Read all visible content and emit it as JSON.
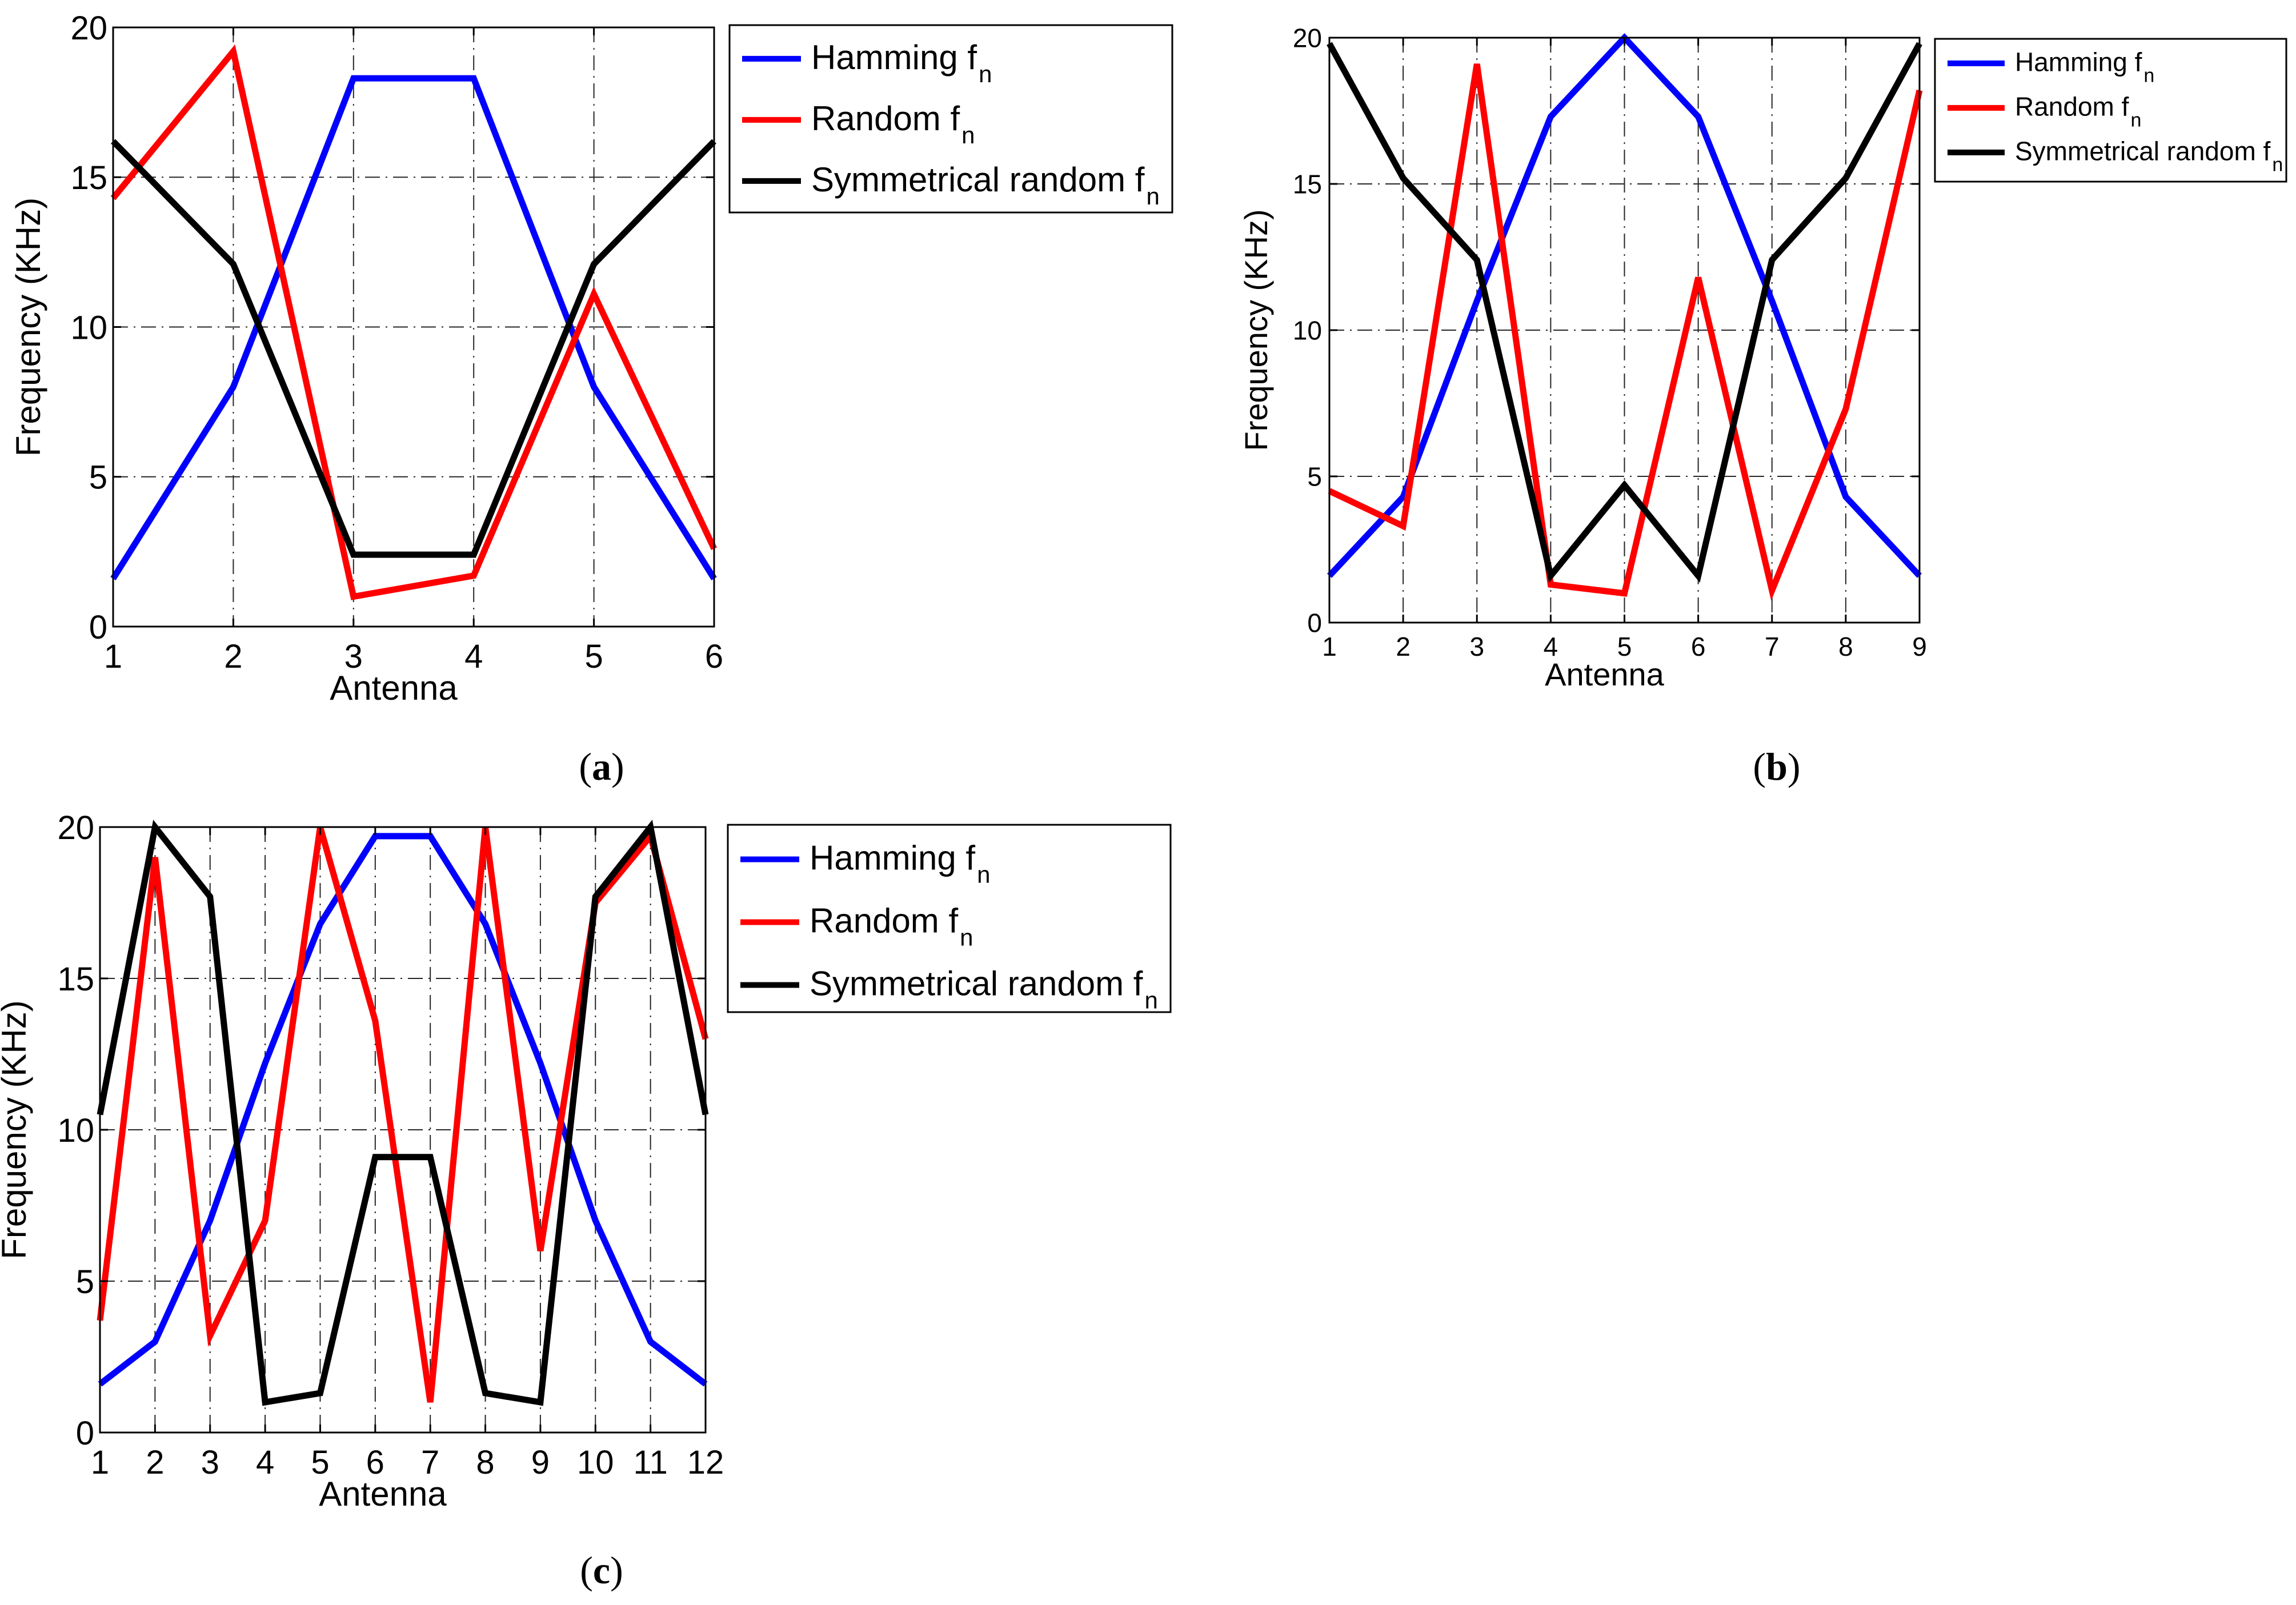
{
  "colors": {
    "hamming": "#0000ff",
    "random": "#ff0000",
    "symmetrical": "#000000"
  },
  "chart_data": [
    {
      "id": "a",
      "type": "line",
      "caption_letter": "a",
      "xlabel": "Antenna",
      "ylabel": "Frequency (KHz)",
      "xlim": [
        1,
        6
      ],
      "ylim": [
        0,
        20
      ],
      "x": [
        1,
        2,
        3,
        4,
        5,
        6
      ],
      "xticks": [
        1,
        2,
        3,
        4,
        5,
        6
      ],
      "yticks": [
        0,
        5,
        10,
        15,
        20
      ],
      "grid": true,
      "legend_position": "outside-right-top",
      "series": [
        {
          "key": "hamming",
          "name": "Hamming f",
          "subscript": "n",
          "values": [
            1.6,
            8.0,
            18.3,
            18.3,
            8.0,
            1.6
          ]
        },
        {
          "key": "random",
          "name": "Random f",
          "subscript": "n",
          "values": [
            14.3,
            19.2,
            1.0,
            1.7,
            11.1,
            2.6
          ]
        },
        {
          "key": "symmetrical",
          "name": "Symmetrical random f",
          "subscript": "n",
          "values": [
            16.2,
            12.1,
            2.4,
            2.4,
            12.1,
            16.2
          ]
        }
      ]
    },
    {
      "id": "b",
      "type": "line",
      "caption_letter": "b",
      "xlabel": "Antenna",
      "ylabel": "Frequency (KHz)",
      "xlim": [
        1,
        9
      ],
      "ylim": [
        0,
        20
      ],
      "x": [
        1,
        2,
        3,
        4,
        5,
        6,
        7,
        8,
        9
      ],
      "xticks": [
        1,
        2,
        3,
        4,
        5,
        6,
        7,
        8,
        9
      ],
      "yticks": [
        0,
        5,
        10,
        15,
        20
      ],
      "grid": true,
      "legend_position": "outside-right-top",
      "series": [
        {
          "key": "hamming",
          "name": "Hamming f",
          "subscript": "n",
          "values": [
            1.6,
            4.3,
            11.0,
            17.3,
            20.0,
            17.3,
            11.0,
            4.3,
            1.6
          ]
        },
        {
          "key": "random",
          "name": "Random f",
          "subscript": "n",
          "values": [
            4.5,
            3.3,
            19.1,
            1.3,
            1.0,
            11.8,
            1.1,
            7.3,
            18.2
          ]
        },
        {
          "key": "symmetrical",
          "name": "Symmetrical random f",
          "subscript": "n",
          "values": [
            19.8,
            15.2,
            12.4,
            1.6,
            4.7,
            1.6,
            12.4,
            15.2,
            19.8
          ]
        }
      ]
    },
    {
      "id": "c",
      "type": "line",
      "caption_letter": "c",
      "xlabel": "Antenna",
      "ylabel": "Frequency (KHz)",
      "xlim": [
        1,
        12
      ],
      "ylim": [
        0,
        20
      ],
      "x": [
        1,
        2,
        3,
        4,
        5,
        6,
        7,
        8,
        9,
        10,
        11,
        12
      ],
      "xticks": [
        1,
        2,
        3,
        4,
        5,
        6,
        7,
        8,
        9,
        10,
        11,
        12
      ],
      "yticks": [
        0,
        5,
        10,
        15,
        20
      ],
      "grid": true,
      "legend_position": "outside-right-top",
      "series": [
        {
          "key": "hamming",
          "name": "Hamming f",
          "subscript": "n",
          "values": [
            1.6,
            3.0,
            7.0,
            12.2,
            16.8,
            19.7,
            19.7,
            16.8,
            12.2,
            7.0,
            3.0,
            1.6
          ]
        },
        {
          "key": "random",
          "name": "Random f",
          "subscript": "n",
          "values": [
            3.7,
            19.0,
            3.2,
            7.0,
            20.0,
            13.6,
            1.0,
            20.0,
            6.0,
            17.5,
            19.7,
            13.0
          ]
        },
        {
          "key": "symmetrical",
          "name": "Symmetrical random f",
          "subscript": "n",
          "values": [
            10.5,
            20.0,
            17.7,
            1.0,
            1.3,
            9.1,
            9.1,
            1.3,
            1.0,
            17.7,
            20.0,
            10.5
          ]
        }
      ]
    }
  ]
}
